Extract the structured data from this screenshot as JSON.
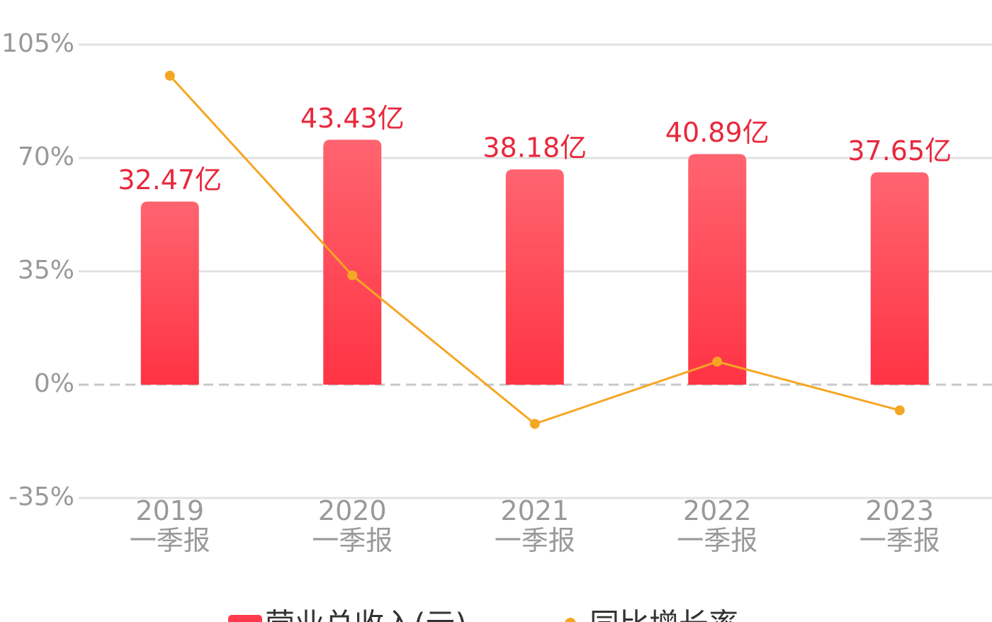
{
  "chart_data": {
    "type": "bar-line",
    "categories": [
      "2019\n一季报",
      "2020\n一季报",
      "2021\n一季报",
      "2022\n一季报",
      "2023\n一季报"
    ],
    "series": [
      {
        "name": "营业总收入(元)",
        "type": "bar",
        "axis": "y2",
        "color": "#ff3a4c",
        "values": [
          32.47,
          43.43,
          38.18,
          40.89,
          37.65
        ],
        "value_labels": [
          "32.47亿",
          "43.43亿",
          "38.18亿",
          "40.89亿",
          "37.65亿"
        ]
      },
      {
        "name": "同比增长率",
        "type": "line",
        "color": "#f5a623",
        "values": [
          95.4,
          33.75,
          -12.09,
          7.1,
          -7.92
        ]
      }
    ],
    "ylim": [
      -35,
      105
    ],
    "yticks": [
      {
        "value": -35,
        "label": "-35%"
      },
      {
        "value": 0,
        "label": "0%"
      },
      {
        "value": 35,
        "label": "35%"
      },
      {
        "value": 70,
        "label": "70%"
      },
      {
        "value": 105,
        "label": "105%"
      }
    ],
    "y2lim": [
      -20.1,
      60.3
    ],
    "grid": true
  }
}
